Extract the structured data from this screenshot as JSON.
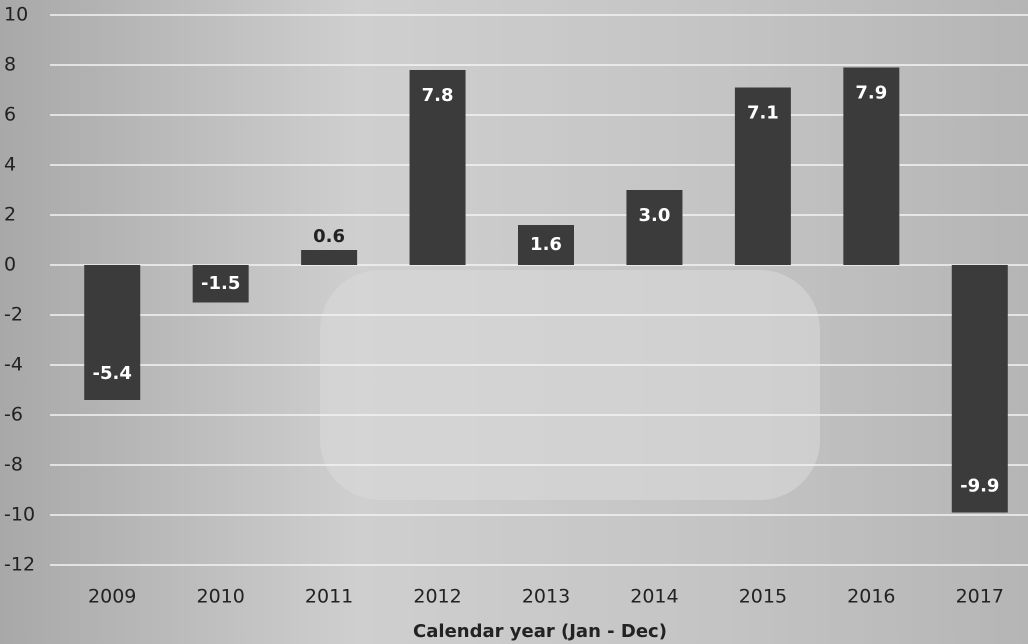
{
  "chart_data": {
    "type": "bar",
    "x_label": "Calendar year (Jan - Dec)",
    "categories": [
      "2009",
      "2010",
      "2011",
      "2012",
      "2013",
      "2014",
      "2015",
      "2016",
      "2017"
    ],
    "values": [
      -5.4,
      -1.5,
      0.6,
      7.8,
      1.6,
      3.0,
      7.1,
      7.9,
      -9.9
    ],
    "value_labels": [
      "-5.4",
      "-1.5",
      "0.6",
      "7.8",
      "1.6",
      "3.0",
      "7.1",
      "7.9",
      "-9.9"
    ],
    "color": "#3b3b3b",
    "ylim": [
      -12,
      10
    ],
    "yticks": [
      -12,
      -10,
      -8,
      -6,
      -4,
      -2,
      0,
      2,
      4,
      6,
      8,
      10
    ],
    "grid": true
  }
}
